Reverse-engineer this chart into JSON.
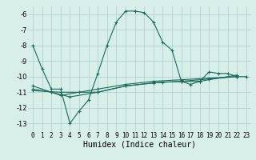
{
  "xlabel": "Humidex (Indice chaleur)",
  "bg_color": "#d8eee8",
  "grid_color": "#aacccc",
  "line_color": "#1a6b5a",
  "xlim": [
    -0.5,
    23.5
  ],
  "ylim": [
    -13.5,
    -5.5
  ],
  "yticks": [
    -13,
    -12,
    -11,
    -10,
    -9,
    -8,
    -7,
    -6
  ],
  "xticks": [
    0,
    1,
    2,
    3,
    4,
    5,
    6,
    7,
    8,
    9,
    10,
    11,
    12,
    13,
    14,
    15,
    16,
    17,
    18,
    19,
    20,
    21,
    22,
    23
  ],
  "line1_x": [
    0,
    1,
    2,
    3,
    4,
    5,
    6,
    7,
    8,
    9,
    10,
    11,
    12,
    13,
    14,
    15,
    16,
    17,
    18,
    19,
    20,
    21,
    22,
    23
  ],
  "line1_y": [
    -8.0,
    -9.5,
    -10.8,
    -10.8,
    -13.0,
    -12.2,
    -11.5,
    -9.8,
    -8.0,
    -6.5,
    -5.8,
    -5.8,
    -5.9,
    -6.5,
    -7.8,
    -8.3,
    -10.3,
    -10.5,
    -10.3,
    -9.7,
    -9.8,
    -9.8,
    -10.0,
    -10.0
  ],
  "line2_x": [
    0,
    2,
    3,
    5,
    7,
    10,
    13,
    16,
    19,
    22
  ],
  "line2_y": [
    -10.8,
    -11.0,
    -11.2,
    -11.0,
    -10.8,
    -10.5,
    -10.3,
    -10.2,
    -10.1,
    -10.0
  ],
  "line3_x": [
    0,
    2,
    4,
    7,
    10,
    13,
    16,
    19,
    22
  ],
  "line3_y": [
    -10.6,
    -11.0,
    -11.3,
    -11.0,
    -10.6,
    -10.4,
    -10.3,
    -10.15,
    -10.0
  ],
  "line4_x": [
    0,
    3,
    7,
    10,
    14,
    18,
    22
  ],
  "line4_y": [
    -10.9,
    -11.0,
    -11.0,
    -10.6,
    -10.35,
    -10.3,
    -9.9
  ],
  "tick_fontsize": 5.5,
  "xlabel_fontsize": 7
}
